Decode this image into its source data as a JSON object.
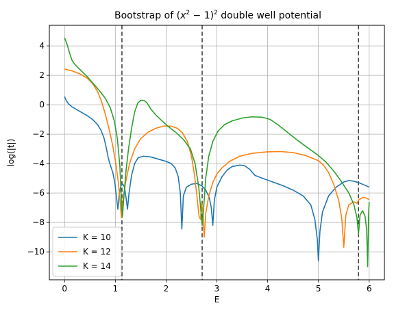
{
  "chart_data": {
    "type": "line",
    "title_prefix": "Bootstrap of (",
    "title_math_x": "x",
    "title_math_sup1": "2",
    "title_math_mid": " − 1)",
    "title_math_sup2": "2",
    "title_suffix": " double well potential",
    "xlabel": "E",
    "ylabel": "log(|t|)",
    "xlim": [
      -0.3,
      6.3
    ],
    "ylim": [
      -11.9,
      5.4
    ],
    "xticks": [
      0,
      1,
      2,
      3,
      4,
      5,
      6
    ],
    "yticks": [
      4,
      2,
      0,
      -2,
      -4,
      -6,
      -8,
      -10
    ],
    "ytick_labels": [
      "4",
      "2",
      "0",
      "−2",
      "−4",
      "−6",
      "−8",
      "−10"
    ],
    "grid": true,
    "legend_position": "lower-left",
    "vlines": [
      1.13,
      2.71,
      5.79
    ],
    "vline_color": "#404040",
    "series": [
      {
        "name": "K = 10",
        "color": "#1f77b4",
        "points": [
          [
            0,
            0.55
          ],
          [
            0.03,
            0.3
          ],
          [
            0.08,
            0.05
          ],
          [
            0.15,
            -0.15
          ],
          [
            0.25,
            -0.35
          ],
          [
            0.35,
            -0.55
          ],
          [
            0.45,
            -0.75
          ],
          [
            0.55,
            -1.0
          ],
          [
            0.65,
            -1.35
          ],
          [
            0.72,
            -1.75
          ],
          [
            0.78,
            -2.3
          ],
          [
            0.82,
            -2.9
          ],
          [
            0.86,
            -3.6
          ],
          [
            0.9,
            -4.1
          ],
          [
            0.95,
            -4.6
          ],
          [
            0.99,
            -5.3
          ],
          [
            1.02,
            -6.2
          ],
          [
            1.05,
            -7.1
          ],
          [
            1.08,
            -6.0
          ],
          [
            1.11,
            -5.5
          ],
          [
            1.15,
            -5.4
          ],
          [
            1.18,
            -5.6
          ],
          [
            1.21,
            -6.3
          ],
          [
            1.24,
            -7.1
          ],
          [
            1.27,
            -6.0
          ],
          [
            1.32,
            -4.8
          ],
          [
            1.38,
            -4.0
          ],
          [
            1.45,
            -3.6
          ],
          [
            1.55,
            -3.5
          ],
          [
            1.7,
            -3.55
          ],
          [
            1.85,
            -3.7
          ],
          [
            2.0,
            -3.85
          ],
          [
            2.1,
            -4.0
          ],
          [
            2.18,
            -4.3
          ],
          [
            2.24,
            -4.9
          ],
          [
            2.28,
            -6.0
          ],
          [
            2.31,
            -8.45
          ],
          [
            2.34,
            -6.2
          ],
          [
            2.4,
            -5.6
          ],
          [
            2.5,
            -5.4
          ],
          [
            2.6,
            -5.35
          ],
          [
            2.7,
            -5.5
          ],
          [
            2.78,
            -5.8
          ],
          [
            2.85,
            -6.3
          ],
          [
            2.89,
            -7.0
          ],
          [
            2.92,
            -8.2
          ],
          [
            2.95,
            -6.5
          ],
          [
            3.0,
            -5.6
          ],
          [
            3.1,
            -4.9
          ],
          [
            3.2,
            -4.45
          ],
          [
            3.3,
            -4.2
          ],
          [
            3.45,
            -4.1
          ],
          [
            3.55,
            -4.15
          ],
          [
            3.65,
            -4.4
          ],
          [
            3.75,
            -4.8
          ],
          [
            3.9,
            -5.0
          ],
          [
            4.1,
            -5.25
          ],
          [
            4.3,
            -5.5
          ],
          [
            4.5,
            -5.8
          ],
          [
            4.7,
            -6.2
          ],
          [
            4.85,
            -6.8
          ],
          [
            4.93,
            -7.8
          ],
          [
            4.98,
            -9.2
          ],
          [
            5.0,
            -10.6
          ],
          [
            5.03,
            -8.6
          ],
          [
            5.08,
            -7.3
          ],
          [
            5.2,
            -6.2
          ],
          [
            5.35,
            -5.6
          ],
          [
            5.5,
            -5.25
          ],
          [
            5.6,
            -5.15
          ],
          [
            5.7,
            -5.2
          ],
          [
            5.8,
            -5.3
          ],
          [
            5.9,
            -5.45
          ],
          [
            6.0,
            -5.6
          ]
        ]
      },
      {
        "name": "K = 12",
        "color": "#ff7f0e",
        "points": [
          [
            0,
            2.42
          ],
          [
            0.15,
            2.3
          ],
          [
            0.3,
            2.1
          ],
          [
            0.45,
            1.8
          ],
          [
            0.55,
            1.45
          ],
          [
            0.65,
            0.9
          ],
          [
            0.72,
            0.3
          ],
          [
            0.8,
            -0.6
          ],
          [
            0.88,
            -1.7
          ],
          [
            0.95,
            -2.8
          ],
          [
            1.01,
            -4.0
          ],
          [
            1.06,
            -5.3
          ],
          [
            1.1,
            -6.8
          ],
          [
            1.12,
            -7.7
          ],
          [
            1.15,
            -6.5
          ],
          [
            1.2,
            -5.3
          ],
          [
            1.28,
            -4.0
          ],
          [
            1.38,
            -3.0
          ],
          [
            1.5,
            -2.3
          ],
          [
            1.65,
            -1.85
          ],
          [
            1.8,
            -1.6
          ],
          [
            1.95,
            -1.45
          ],
          [
            2.1,
            -1.45
          ],
          [
            2.22,
            -1.6
          ],
          [
            2.32,
            -1.9
          ],
          [
            2.42,
            -2.5
          ],
          [
            2.5,
            -3.5
          ],
          [
            2.56,
            -4.8
          ],
          [
            2.61,
            -6.3
          ],
          [
            2.65,
            -7.6
          ],
          [
            2.68,
            -7.8
          ],
          [
            2.7,
            -6.6
          ],
          [
            2.73,
            -7.6
          ],
          [
            2.75,
            -9.0
          ],
          [
            2.78,
            -7.4
          ],
          [
            2.84,
            -6.2
          ],
          [
            2.92,
            -5.3
          ],
          [
            3.0,
            -4.7
          ],
          [
            3.1,
            -4.3
          ],
          [
            3.25,
            -3.85
          ],
          [
            3.45,
            -3.5
          ],
          [
            3.7,
            -3.3
          ],
          [
            4.0,
            -3.2
          ],
          [
            4.25,
            -3.18
          ],
          [
            4.5,
            -3.25
          ],
          [
            4.75,
            -3.45
          ],
          [
            5.0,
            -3.8
          ],
          [
            5.1,
            -4.1
          ],
          [
            5.2,
            -4.6
          ],
          [
            5.3,
            -5.4
          ],
          [
            5.4,
            -6.5
          ],
          [
            5.46,
            -7.7
          ],
          [
            5.5,
            -9.7
          ],
          [
            5.54,
            -7.5
          ],
          [
            5.6,
            -6.8
          ],
          [
            5.7,
            -6.6
          ],
          [
            5.76,
            -6.7
          ],
          [
            5.8,
            -6.45
          ],
          [
            5.88,
            -6.3
          ],
          [
            5.95,
            -6.35
          ],
          [
            6.0,
            -6.45
          ]
        ]
      },
      {
        "name": "K = 14",
        "color": "#2ca02c",
        "points": [
          [
            0,
            4.55
          ],
          [
            0.05,
            4.1
          ],
          [
            0.1,
            3.5
          ],
          [
            0.15,
            3.0
          ],
          [
            0.2,
            2.75
          ],
          [
            0.3,
            2.4
          ],
          [
            0.45,
            1.9
          ],
          [
            0.6,
            1.3
          ],
          [
            0.7,
            0.9
          ],
          [
            0.8,
            0.45
          ],
          [
            0.9,
            -0.2
          ],
          [
            0.98,
            -1.1
          ],
          [
            1.04,
            -2.3
          ],
          [
            1.09,
            -4.2
          ],
          [
            1.12,
            -6.6
          ],
          [
            1.14,
            -7.6
          ],
          [
            1.17,
            -6.2
          ],
          [
            1.21,
            -4.5
          ],
          [
            1.26,
            -3.0
          ],
          [
            1.32,
            -1.6
          ],
          [
            1.38,
            -0.5
          ],
          [
            1.44,
            0.1
          ],
          [
            1.5,
            0.3
          ],
          [
            1.56,
            0.3
          ],
          [
            1.62,
            0.15
          ],
          [
            1.7,
            -0.3
          ],
          [
            1.8,
            -0.7
          ],
          [
            1.92,
            -1.1
          ],
          [
            2.05,
            -1.5
          ],
          [
            2.2,
            -1.9
          ],
          [
            2.35,
            -2.4
          ],
          [
            2.48,
            -3.0
          ],
          [
            2.57,
            -4.0
          ],
          [
            2.64,
            -5.5
          ],
          [
            2.68,
            -7.0
          ],
          [
            2.71,
            -8.2
          ],
          [
            2.74,
            -7.0
          ],
          [
            2.78,
            -5.0
          ],
          [
            2.84,
            -3.5
          ],
          [
            2.92,
            -2.5
          ],
          [
            3.02,
            -1.8
          ],
          [
            3.15,
            -1.35
          ],
          [
            3.3,
            -1.1
          ],
          [
            3.5,
            -0.9
          ],
          [
            3.7,
            -0.82
          ],
          [
            3.9,
            -0.85
          ],
          [
            4.05,
            -1.0
          ],
          [
            4.2,
            -1.35
          ],
          [
            4.4,
            -1.9
          ],
          [
            4.6,
            -2.45
          ],
          [
            4.8,
            -2.95
          ],
          [
            5.0,
            -3.45
          ],
          [
            5.15,
            -3.9
          ],
          [
            5.3,
            -4.5
          ],
          [
            5.45,
            -5.2
          ],
          [
            5.6,
            -6.0
          ],
          [
            5.7,
            -6.8
          ],
          [
            5.76,
            -7.7
          ],
          [
            5.79,
            -8.8
          ],
          [
            5.82,
            -7.5
          ],
          [
            5.87,
            -7.2
          ],
          [
            5.92,
            -7.6
          ],
          [
            5.95,
            -8.5
          ],
          [
            5.97,
            -11.0
          ],
          [
            5.99,
            -7.3
          ],
          [
            6.0,
            -6.6
          ]
        ]
      }
    ]
  }
}
